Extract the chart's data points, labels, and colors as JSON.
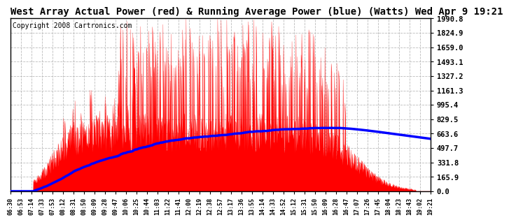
{
  "title": "West Array Actual Power (red) & Running Average Power (blue) (Watts) Wed Apr 9 19:21",
  "copyright": "Copyright 2008 Cartronics.com",
  "yticks": [
    0.0,
    165.9,
    331.8,
    497.7,
    663.6,
    829.5,
    995.4,
    1161.3,
    1327.2,
    1493.1,
    1659.0,
    1824.9,
    1990.8
  ],
  "ymax": 1990.8,
  "ymin": 0.0,
  "xtick_labels": [
    "06:30",
    "06:53",
    "07:14",
    "07:33",
    "07:53",
    "08:12",
    "08:31",
    "08:50",
    "09:09",
    "09:28",
    "09:47",
    "10:06",
    "10:25",
    "10:44",
    "11:03",
    "11:22",
    "11:41",
    "12:00",
    "12:19",
    "12:38",
    "12:57",
    "13:17",
    "13:36",
    "13:55",
    "14:14",
    "14:33",
    "14:52",
    "15:12",
    "15:31",
    "15:50",
    "16:09",
    "16:28",
    "16:47",
    "17:07",
    "17:26",
    "17:45",
    "18:04",
    "18:23",
    "18:43",
    "19:02",
    "19:21"
  ],
  "bg_color": "#ffffff",
  "plot_bg_color": "#ffffff",
  "grid_color": "#bbbbbb",
  "bar_color": "#ff0000",
  "avg_color": "#0000ff",
  "title_fontsize": 10,
  "copyright_fontsize": 7
}
